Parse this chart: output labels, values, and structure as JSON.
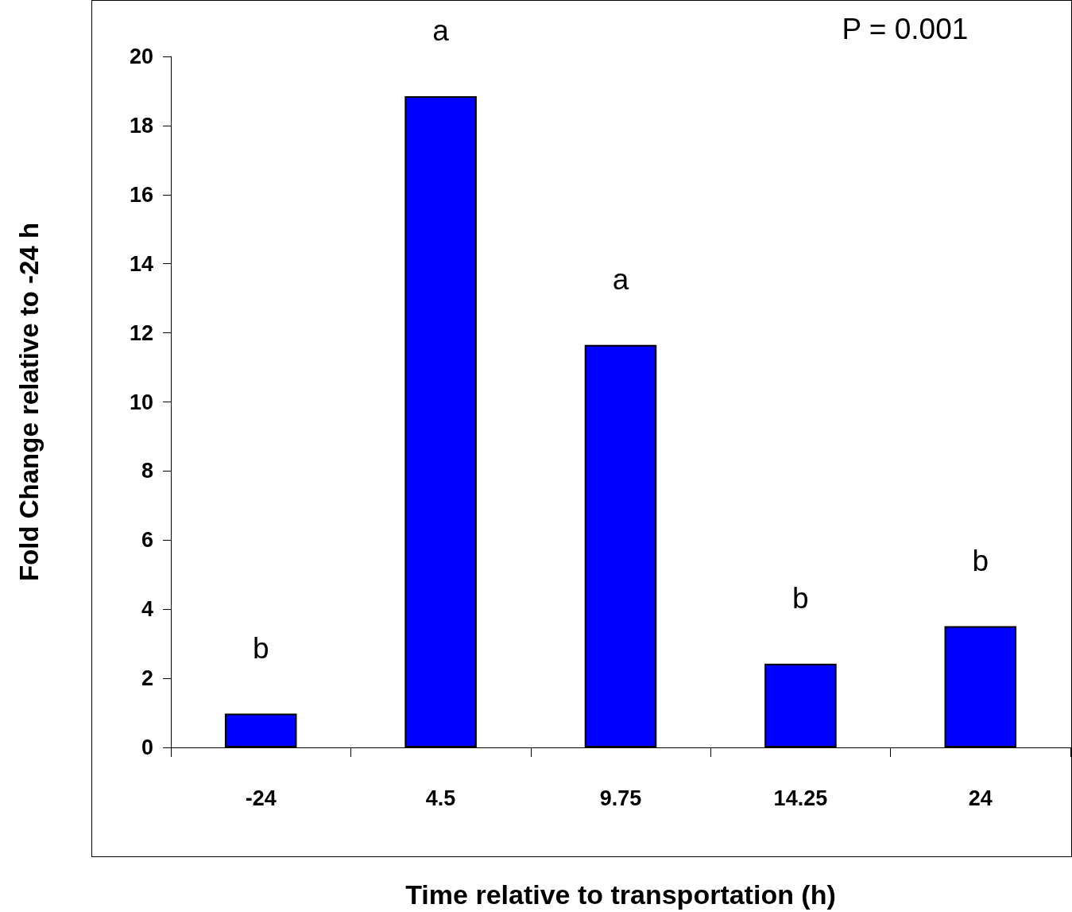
{
  "chart_data": {
    "type": "bar",
    "xlabel": "Time relative to transportation (h)",
    "ylabel": "Fold Change relative to -24 h",
    "categories": [
      "-24",
      "4.5",
      "9.75",
      "14.25",
      "24"
    ],
    "values": [
      0.98,
      18.85,
      11.65,
      2.42,
      3.51
    ],
    "color": "#0000ff",
    "ylim": [
      0,
      20
    ],
    "yticks": [
      0,
      2,
      4,
      6,
      8,
      10,
      12,
      14,
      16,
      18,
      20
    ],
    "grid": false,
    "annotations": [
      "b",
      "a",
      "a",
      "b",
      "b",
      "P = 0.001"
    ]
  }
}
